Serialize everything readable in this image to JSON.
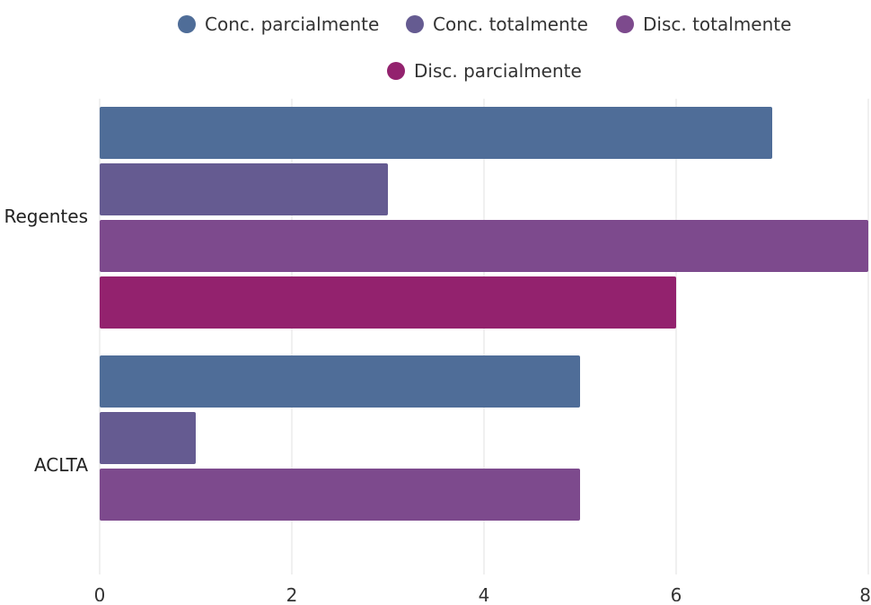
{
  "chart_data": {
    "type": "bar",
    "orientation": "horizontal",
    "categories": [
      "Regentes",
      "ACLTA"
    ],
    "series": [
      {
        "name": "Conc. parcialmente",
        "color": "#4f6d98",
        "values": [
          7,
          5
        ]
      },
      {
        "name": "Conc. totalmente",
        "color": "#655b91",
        "values": [
          3,
          1
        ]
      },
      {
        "name": "Disc. totalmente",
        "color": "#7d4a8d",
        "values": [
          8,
          5
        ]
      },
      {
        "name": "Disc. parcialmente",
        "color": "#93226e",
        "values": [
          6,
          null
        ]
      }
    ],
    "xlim": [
      0,
      8
    ],
    "xticks": [
      "0",
      "2",
      "4",
      "6",
      "8"
    ],
    "grid": true,
    "legend_position": "top"
  }
}
